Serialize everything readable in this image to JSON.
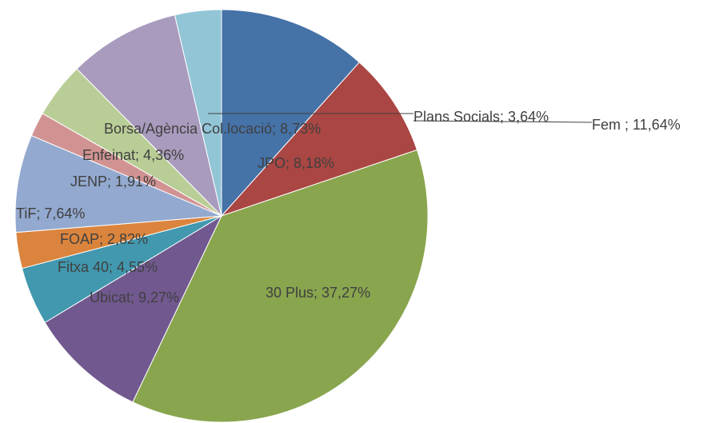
{
  "chart_data": {
    "type": "pie",
    "values": [
      11.64,
      8.18,
      37.27,
      9.27,
      4.55,
      2.82,
      7.64,
      1.91,
      4.36,
      8.73,
      3.64
    ],
    "value_labels": [
      "Fem ; 11,64%",
      "JPO; 8,18%",
      "30 Plus; 37,27%",
      "Ubicat; 9,27%",
      "Fitxa 40; 4,55%",
      "FOAP; 2,82%",
      "TiF; 7,64%",
      "JENP; 1,91%",
      "Enfeinat; 4,36%",
      "Borsa/Agència Col.locació; 8,73%",
      "Plans Socials; 3,64%"
    ],
    "colors": [
      "#4572a7",
      "#aa4643",
      "#89a54e",
      "#71588f",
      "#4198af",
      "#db843d",
      "#93a9cf",
      "#d19392",
      "#b9cd96",
      "#a99bbd",
      "#92c5d6"
    ]
  }
}
